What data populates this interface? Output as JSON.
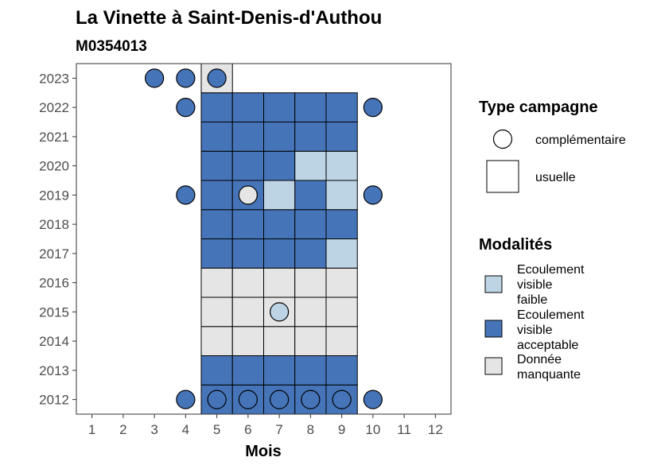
{
  "title": "La Vinette à Saint-Denis-d'Authou",
  "subtitle": "M0354013",
  "chart_data": {
    "type": "heatmap",
    "xlabel": "Mois",
    "ylabel": "",
    "x_ticks": [
      "1",
      "2",
      "3",
      "4",
      "5",
      "6",
      "7",
      "8",
      "9",
      "10",
      "11",
      "12"
    ],
    "y_ticks": [
      "2012",
      "2013",
      "2014",
      "2015",
      "2016",
      "2017",
      "2018",
      "2019",
      "2020",
      "2021",
      "2022",
      "2023"
    ],
    "xlim": [
      0.5,
      12.5
    ],
    "ylim": [
      2011.5,
      2023.5
    ],
    "colors": {
      "Ecoulement visible faible": "#bdd4e5",
      "Ecoulement visible acceptable": "#4674b8",
      "Donnée manquante": "#e5e5e5"
    },
    "usuelle": [
      {
        "year": 2012,
        "months": [
          5,
          6,
          7,
          8,
          9
        ],
        "values": [
          "Ecoulement visible acceptable",
          "Ecoulement visible acceptable",
          "Ecoulement visible acceptable",
          "Ecoulement visible acceptable",
          "Ecoulement visible acceptable"
        ]
      },
      {
        "year": 2013,
        "months": [
          5,
          6,
          7,
          8,
          9
        ],
        "values": [
          "Ecoulement visible acceptable",
          "Ecoulement visible acceptable",
          "Ecoulement visible acceptable",
          "Ecoulement visible acceptable",
          "Ecoulement visible acceptable"
        ]
      },
      {
        "year": 2014,
        "months": [
          5,
          6,
          7,
          8,
          9
        ],
        "values": [
          "Donnée manquante",
          "Donnée manquante",
          "Donnée manquante",
          "Donnée manquante",
          "Donnée manquante"
        ]
      },
      {
        "year": 2015,
        "months": [
          5,
          6,
          7,
          8,
          9
        ],
        "values": [
          "Donnée manquante",
          "Donnée manquante",
          "Donnée manquante",
          "Donnée manquante",
          "Donnée manquante"
        ]
      },
      {
        "year": 2016,
        "months": [
          5,
          6,
          7,
          8,
          9
        ],
        "values": [
          "Donnée manquante",
          "Donnée manquante",
          "Donnée manquante",
          "Donnée manquante",
          "Donnée manquante"
        ]
      },
      {
        "year": 2017,
        "months": [
          5,
          6,
          7,
          8,
          9
        ],
        "values": [
          "Ecoulement visible acceptable",
          "Ecoulement visible acceptable",
          "Ecoulement visible acceptable",
          "Ecoulement visible acceptable",
          "Ecoulement visible faible"
        ]
      },
      {
        "year": 2018,
        "months": [
          5,
          6,
          7,
          8,
          9
        ],
        "values": [
          "Ecoulement visible acceptable",
          "Ecoulement visible acceptable",
          "Ecoulement visible acceptable",
          "Ecoulement visible acceptable",
          "Ecoulement visible acceptable"
        ]
      },
      {
        "year": 2019,
        "months": [
          5,
          6,
          7,
          8,
          9
        ],
        "values": [
          "Ecoulement visible acceptable",
          "Ecoulement visible acceptable",
          "Ecoulement visible faible",
          "Ecoulement visible acceptable",
          "Ecoulement visible faible"
        ]
      },
      {
        "year": 2020,
        "months": [
          5,
          6,
          7,
          8,
          9
        ],
        "values": [
          "Ecoulement visible acceptable",
          "Ecoulement visible acceptable",
          "Ecoulement visible acceptable",
          "Ecoulement visible faible",
          "Ecoulement visible faible"
        ]
      },
      {
        "year": 2021,
        "months": [
          5,
          6,
          7,
          8,
          9
        ],
        "values": [
          "Ecoulement visible acceptable",
          "Ecoulement visible acceptable",
          "Ecoulement visible acceptable",
          "Ecoulement visible acceptable",
          "Ecoulement visible acceptable"
        ]
      },
      {
        "year": 2022,
        "months": [
          5,
          6,
          7,
          8,
          9
        ],
        "values": [
          "Ecoulement visible acceptable",
          "Ecoulement visible acceptable",
          "Ecoulement visible acceptable",
          "Ecoulement visible acceptable",
          "Ecoulement visible acceptable"
        ]
      },
      {
        "year": 2023,
        "months": [
          5
        ],
        "values": [
          "Donnée manquante"
        ]
      }
    ],
    "complementaire": [
      {
        "year": 2012,
        "month": 4,
        "value": "Ecoulement visible acceptable"
      },
      {
        "year": 2012,
        "month": 5,
        "value": "Ecoulement visible acceptable"
      },
      {
        "year": 2012,
        "month": 6,
        "value": "Ecoulement visible acceptable"
      },
      {
        "year": 2012,
        "month": 7,
        "value": "Ecoulement visible acceptable"
      },
      {
        "year": 2012,
        "month": 8,
        "value": "Ecoulement visible acceptable"
      },
      {
        "year": 2012,
        "month": 9,
        "value": "Ecoulement visible acceptable"
      },
      {
        "year": 2012,
        "month": 10,
        "value": "Ecoulement visible acceptable"
      },
      {
        "year": 2015,
        "month": 7,
        "value": "Ecoulement visible faible"
      },
      {
        "year": 2019,
        "month": 4,
        "value": "Ecoulement visible acceptable"
      },
      {
        "year": 2019,
        "month": 6,
        "value": "Donnée manquante"
      },
      {
        "year": 2019,
        "month": 10,
        "value": "Ecoulement visible acceptable"
      },
      {
        "year": 2022,
        "month": 4,
        "value": "Ecoulement visible acceptable"
      },
      {
        "year": 2022,
        "month": 10,
        "value": "Ecoulement visible acceptable"
      },
      {
        "year": 2023,
        "month": 3,
        "value": "Ecoulement visible acceptable"
      },
      {
        "year": 2023,
        "month": 4,
        "value": "Ecoulement visible acceptable"
      },
      {
        "year": 2023,
        "month": 5,
        "value": "Ecoulement visible acceptable"
      }
    ],
    "legend_type": {
      "title": "Type campagne",
      "items": [
        "complémentaire",
        "usuelle"
      ]
    },
    "legend_modalites": {
      "title": "Modalités",
      "items": [
        {
          "lines": [
            "Ecoulement",
            "visible",
            "faible"
          ],
          "key": "Ecoulement visible faible"
        },
        {
          "lines": [
            "Ecoulement",
            "visible",
            "acceptable"
          ],
          "key": "Ecoulement visible acceptable"
        },
        {
          "lines": [
            "Donnée",
            "manquante"
          ],
          "key": "Donnée manquante"
        }
      ]
    },
    "legend_position": "right",
    "grid": false
  }
}
